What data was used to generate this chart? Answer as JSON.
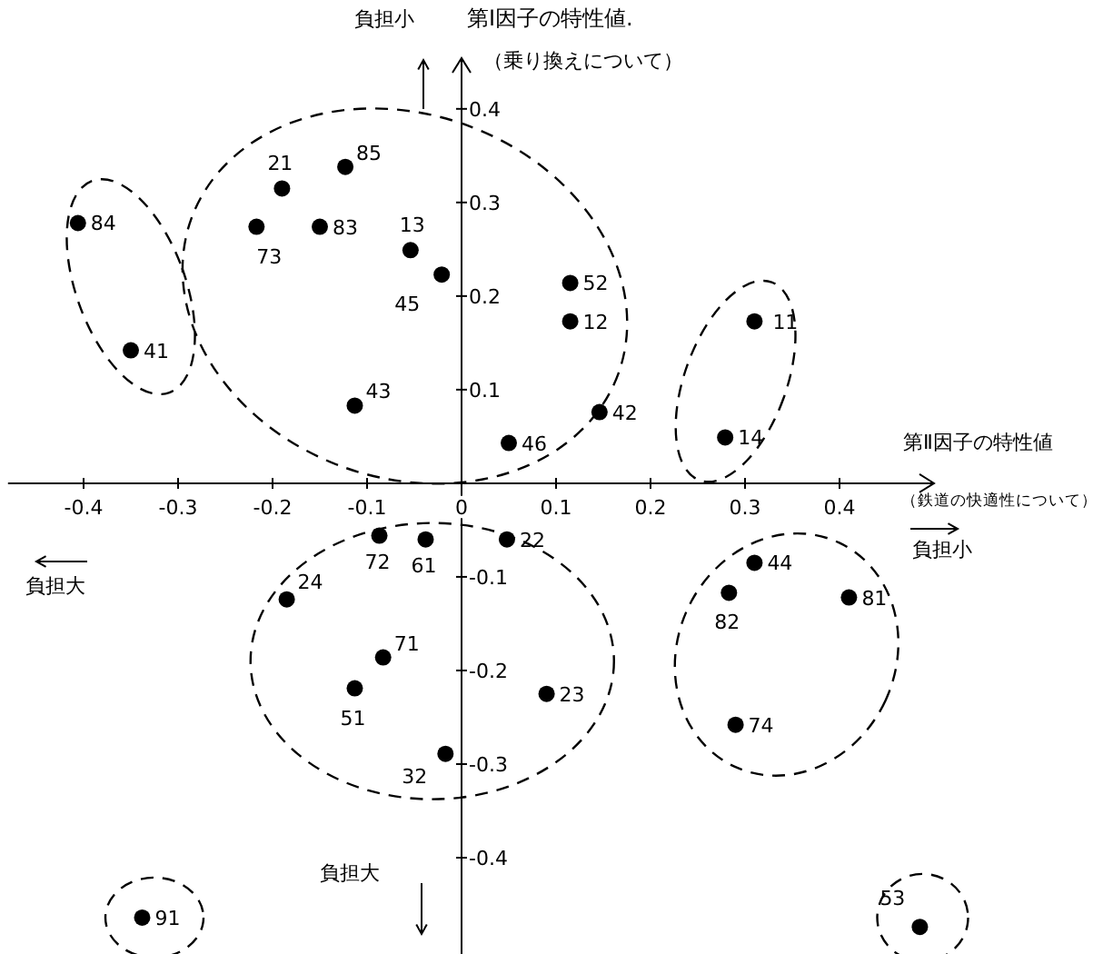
{
  "chart_data": {
    "type": "scatter",
    "xlabel": "第Ⅱ因子の特性値",
    "ylabel": "第Ⅰ因子の特性値.",
    "x": [
      -0.406,
      -0.35,
      -0.19,
      -0.123,
      -0.217,
      -0.15,
      -0.054,
      -0.021,
      -0.113,
      0.05,
      0.115,
      0.115,
      0.146,
      0.31,
      0.279,
      -0.087,
      -0.038,
      0.048,
      -0.185,
      -0.083,
      -0.113,
      -0.017,
      0.09,
      0.31,
      0.283,
      0.41,
      0.29,
      -0.338,
      0.485
    ],
    "values": [
      0.278,
      0.142,
      0.315,
      0.338,
      0.274,
      0.274,
      0.249,
      0.223,
      0.083,
      0.043,
      0.214,
      0.173,
      0.076,
      0.173,
      0.049,
      -0.056,
      -0.06,
      -0.06,
      -0.124,
      -0.186,
      -0.219,
      -0.289,
      -0.225,
      -0.085,
      -0.117,
      -0.122,
      -0.258,
      -0.464,
      -0.474
    ],
    "color": "#000000",
    "marker": "circle",
    "xlim": [
      -0.48,
      0.5
    ],
    "ylim": [
      -0.5,
      0.46
    ],
    "xticks": [
      -0.4,
      -0.3,
      -0.2,
      -0.1,
      0,
      0.1,
      0.2,
      0.3,
      0.4
    ],
    "yticks": [
      -0.4,
      -0.3,
      -0.2,
      -0.1,
      0.1,
      0.2,
      0.3,
      0.4
    ],
    "grid": false,
    "legend": false,
    "annotations": [
      {
        "text": "84",
        "x": -0.406,
        "y": 0.278
      },
      {
        "text": "41",
        "x": -0.35,
        "y": 0.142
      },
      {
        "text": "21",
        "x": -0.19,
        "y": 0.315
      },
      {
        "text": "85",
        "x": -0.123,
        "y": 0.338
      },
      {
        "text": "73",
        "x": -0.217,
        "y": 0.274
      },
      {
        "text": "83",
        "x": -0.15,
        "y": 0.274
      },
      {
        "text": "13",
        "x": -0.054,
        "y": 0.249
      },
      {
        "text": "45",
        "x": -0.021,
        "y": 0.223
      },
      {
        "text": "43",
        "x": -0.113,
        "y": 0.083
      },
      {
        "text": "46",
        "x": 0.05,
        "y": 0.043
      },
      {
        "text": "52",
        "x": 0.115,
        "y": 0.214
      },
      {
        "text": "12",
        "x": 0.115,
        "y": 0.173
      },
      {
        "text": "42",
        "x": 0.146,
        "y": 0.076
      },
      {
        "text": "11",
        "x": 0.31,
        "y": 0.173
      },
      {
        "text": "14",
        "x": 0.279,
        "y": 0.049
      },
      {
        "text": "72",
        "x": -0.087,
        "y": -0.056
      },
      {
        "text": "61",
        "x": -0.038,
        "y": -0.06
      },
      {
        "text": "22",
        "x": 0.048,
        "y": -0.06
      },
      {
        "text": "24",
        "x": -0.185,
        "y": -0.124
      },
      {
        "text": "71",
        "x": -0.083,
        "y": -0.186
      },
      {
        "text": "51",
        "x": -0.113,
        "y": -0.219
      },
      {
        "text": "32",
        "x": -0.017,
        "y": -0.289
      },
      {
        "text": "23",
        "x": 0.09,
        "y": -0.225
      },
      {
        "text": "44",
        "x": 0.31,
        "y": -0.085
      },
      {
        "text": "82",
        "x": 0.283,
        "y": -0.117
      },
      {
        "text": "81",
        "x": 0.41,
        "y": -0.122
      },
      {
        "text": "74",
        "x": 0.29,
        "y": -0.258
      },
      {
        "text": "91",
        "x": -0.338,
        "y": -0.464
      },
      {
        "text": "53",
        "x": 0.485,
        "y": -0.474
      },
      "（乗り換えについて）",
      "（鉄道の快適性について）",
      "負担小",
      "負担大",
      "負担小",
      "負担大"
    ]
  }
}
